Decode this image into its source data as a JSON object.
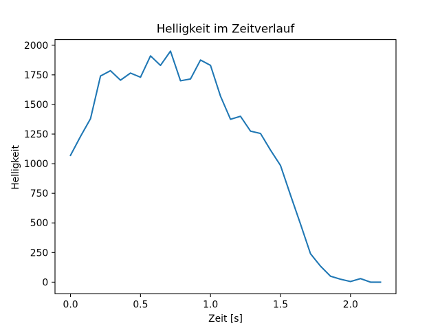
{
  "chart_data": {
    "type": "line",
    "title": "Helligkeit im Zeitverlauf",
    "xlabel": "Zeit [s]",
    "ylabel": "Helligkeit",
    "x": [
      0.0,
      0.0714,
      0.1429,
      0.2143,
      0.2857,
      0.3571,
      0.4286,
      0.5,
      0.5714,
      0.6429,
      0.7143,
      0.7857,
      0.8571,
      0.9286,
      1.0,
      1.0714,
      1.1429,
      1.2143,
      1.2857,
      1.3571,
      1.4286,
      1.5,
      1.5714,
      1.6429,
      1.7143,
      1.7857,
      1.8571,
      1.9286,
      2.0,
      2.0714,
      2.1429,
      2.2143
    ],
    "y": [
      1070,
      1230,
      1380,
      1740,
      1785,
      1705,
      1765,
      1730,
      1910,
      1830,
      1950,
      1700,
      1715,
      1875,
      1830,
      1570,
      1375,
      1400,
      1275,
      1255,
      1115,
      985,
      735,
      490,
      240,
      135,
      50,
      25,
      5,
      30,
      0,
      0
    ],
    "x_ticks": [
      0.0,
      0.5,
      1.0,
      1.5,
      2.0
    ],
    "x_tick_labels": [
      "0.0",
      "0.5",
      "1.0",
      "1.5",
      "2.0"
    ],
    "y_ticks": [
      0,
      250,
      500,
      750,
      1000,
      1250,
      1500,
      1750,
      2000
    ],
    "y_tick_labels": [
      "0",
      "250",
      "500",
      "750",
      "1000",
      "1250",
      "1500",
      "1750",
      "2000"
    ],
    "xlim": [
      -0.110714,
      2.325
    ],
    "ylim": [
      -97.5,
      2047.5
    ],
    "line_color": "#1f77b4",
    "axis_color": "#000000",
    "background_color": "#ffffff",
    "grid": false,
    "legend_position": "none"
  }
}
